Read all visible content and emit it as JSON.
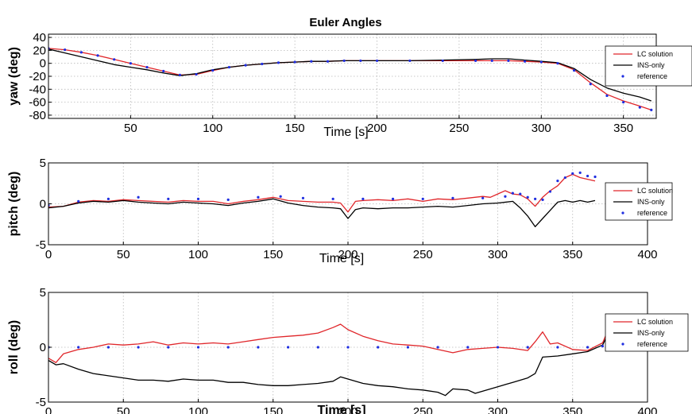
{
  "figure": {
    "title": "Euler Angles"
  },
  "chart_data": [
    {
      "type": "line",
      "ylabel": "yaw (deg)",
      "xlabel": "Time [s]",
      "xlim": [
        0,
        370
      ],
      "ylim": [
        -85,
        45
      ],
      "xticks": [
        50,
        100,
        150,
        200,
        250,
        300,
        350
      ],
      "yticks": [
        -80,
        -60,
        -40,
        -20,
        0,
        20,
        40
      ],
      "grid": true,
      "legend_position": "right",
      "series": [
        {
          "name": "LC solution",
          "color": "#e0262a",
          "style": "line",
          "x": [
            0,
            10,
            20,
            30,
            40,
            50,
            60,
            70,
            80,
            90,
            100,
            110,
            120,
            130,
            140,
            150,
            160,
            170,
            180,
            190,
            200,
            220,
            240,
            260,
            270,
            280,
            290,
            300,
            310,
            320,
            330,
            340,
            350,
            360,
            367
          ],
          "y": [
            23,
            21,
            17,
            12,
            6,
            0,
            -6,
            -12,
            -18,
            -17,
            -11,
            -6,
            -3,
            -1,
            1,
            2,
            3,
            3,
            4,
            4,
            4,
            4,
            4,
            4,
            4,
            4,
            3,
            2,
            0,
            -10,
            -30,
            -48,
            -58,
            -66,
            -72
          ]
        },
        {
          "name": "INS-only",
          "color": "#000000",
          "style": "line",
          "x": [
            0,
            10,
            20,
            30,
            40,
            50,
            60,
            70,
            80,
            90,
            100,
            110,
            120,
            130,
            140,
            150,
            160,
            170,
            180,
            190,
            200,
            220,
            240,
            260,
            270,
            280,
            290,
            300,
            310,
            320,
            330,
            340,
            350,
            360,
            367
          ],
          "y": [
            22,
            16,
            10,
            4,
            -2,
            -6,
            -10,
            -15,
            -19,
            -16,
            -10,
            -6,
            -3,
            -1,
            1,
            2,
            3,
            3,
            4,
            4,
            4,
            4,
            5,
            6,
            7,
            7,
            5,
            3,
            1,
            -8,
            -25,
            -38,
            -46,
            -52,
            -58
          ]
        },
        {
          "name": "reference",
          "color": "#1f2ee0",
          "style": "dots",
          "x": [
            0,
            10,
            20,
            30,
            40,
            50,
            60,
            70,
            80,
            90,
            100,
            110,
            120,
            130,
            140,
            150,
            160,
            170,
            180,
            190,
            200,
            220,
            240,
            260,
            270,
            280,
            290,
            300,
            310,
            320,
            330,
            340,
            350,
            360,
            367
          ],
          "y": [
            23,
            21,
            17,
            12,
            6,
            0,
            -6,
            -12,
            -18,
            -17,
            -11,
            -6,
            -3,
            -1,
            1,
            2,
            3,
            3,
            4,
            4,
            4,
            4,
            4,
            4,
            4,
            4,
            3,
            2,
            0,
            -11,
            -32,
            -50,
            -60,
            -68,
            -72
          ]
        }
      ]
    },
    {
      "type": "line",
      "ylabel": "pitch (deg)",
      "xlabel": "Time [s]",
      "xlim": [
        0,
        400
      ],
      "ylim": [
        -5,
        5
      ],
      "xticks": [
        0,
        50,
        100,
        150,
        200,
        250,
        300,
        350,
        400
      ],
      "yticks": [
        -5,
        0,
        5
      ],
      "grid": true,
      "legend_position": "right",
      "series": [
        {
          "name": "LC solution",
          "color": "#e0262a",
          "style": "line",
          "x": [
            0,
            10,
            20,
            30,
            40,
            50,
            60,
            70,
            80,
            90,
            100,
            110,
            120,
            130,
            140,
            150,
            160,
            170,
            180,
            190,
            195,
            200,
            205,
            210,
            220,
            230,
            240,
            250,
            260,
            270,
            280,
            290,
            295,
            300,
            305,
            310,
            315,
            320,
            325,
            330,
            335,
            340,
            345,
            350,
            355,
            360,
            365
          ],
          "y": [
            -0.4,
            -0.3,
            0.2,
            0.4,
            0.3,
            0.5,
            0.4,
            0.3,
            0.2,
            0.4,
            0.3,
            0.3,
            0.0,
            0.3,
            0.5,
            0.8,
            0.4,
            0.3,
            0.2,
            0.2,
            0.1,
            -1.0,
            0.3,
            0.4,
            0.5,
            0.4,
            0.6,
            0.3,
            0.6,
            0.5,
            0.7,
            0.9,
            0.8,
            1.2,
            1.6,
            1.2,
            1.1,
            0.6,
            -0.3,
            0.8,
            1.6,
            2.2,
            3.2,
            3.6,
            3.2,
            3.0,
            2.8
          ]
        },
        {
          "name": "INS-only",
          "color": "#000000",
          "style": "line",
          "x": [
            0,
            10,
            20,
            30,
            40,
            50,
            60,
            70,
            80,
            90,
            100,
            110,
            120,
            130,
            140,
            150,
            160,
            170,
            180,
            190,
            195,
            200,
            205,
            210,
            220,
            230,
            240,
            250,
            260,
            270,
            280,
            290,
            300,
            310,
            315,
            320,
            325,
            330,
            335,
            340,
            345,
            350,
            355,
            360,
            365
          ],
          "y": [
            -0.5,
            -0.3,
            0.1,
            0.3,
            0.2,
            0.4,
            0.2,
            0.1,
            0.0,
            0.2,
            0.1,
            0.0,
            -0.2,
            0.1,
            0.3,
            0.6,
            0.1,
            -0.2,
            -0.4,
            -0.5,
            -0.6,
            -1.8,
            -0.7,
            -0.5,
            -0.6,
            -0.5,
            -0.5,
            -0.4,
            -0.3,
            -0.4,
            -0.2,
            0.0,
            0.1,
            0.3,
            -0.5,
            -1.5,
            -2.8,
            -1.8,
            -0.8,
            0.2,
            0.4,
            0.2,
            0.4,
            0.2,
            0.4
          ]
        },
        {
          "name": "reference",
          "color": "#1f2ee0",
          "style": "dots",
          "x": [
            0,
            20,
            40,
            60,
            80,
            100,
            120,
            140,
            155,
            170,
            190,
            210,
            230,
            250,
            270,
            290,
            305,
            310,
            315,
            320,
            325,
            330,
            335,
            340,
            345,
            350,
            355,
            360,
            365
          ],
          "y": [
            -0.2,
            0.3,
            0.6,
            0.8,
            0.6,
            0.6,
            0.5,
            0.8,
            0.9,
            0.7,
            0.6,
            0.6,
            0.6,
            0.6,
            0.7,
            0.7,
            0.9,
            1.3,
            1.2,
            0.8,
            0.6,
            0.5,
            1.5,
            2.8,
            3.2,
            3.7,
            3.8,
            3.4,
            3.3
          ]
        }
      ]
    },
    {
      "type": "line",
      "ylabel": "roll (deg)",
      "xlabel": "Time [s]",
      "xlim": [
        0,
        400
      ],
      "ylim": [
        -5,
        5
      ],
      "xticks": [
        0,
        50,
        100,
        150,
        200,
        250,
        300,
        350,
        400
      ],
      "yticks": [
        -5,
        0,
        5
      ],
      "grid": true,
      "legend_position": "right",
      "series": [
        {
          "name": "LC solution",
          "color": "#e0262a",
          "style": "line",
          "x": [
            0,
            5,
            10,
            20,
            30,
            40,
            50,
            60,
            70,
            80,
            90,
            100,
            110,
            120,
            130,
            140,
            150,
            160,
            170,
            180,
            190,
            195,
            200,
            210,
            220,
            230,
            240,
            250,
            260,
            270,
            280,
            290,
            300,
            310,
            320,
            325,
            330,
            335,
            340,
            350,
            360,
            370,
            375,
            380
          ],
          "y": [
            -1.0,
            -1.4,
            -0.6,
            -0.2,
            0.0,
            0.3,
            0.2,
            0.3,
            0.5,
            0.2,
            0.4,
            0.3,
            0.4,
            0.3,
            0.5,
            0.7,
            0.9,
            1.0,
            1.1,
            1.3,
            1.8,
            2.1,
            1.6,
            1.0,
            0.6,
            0.3,
            0.2,
            0.1,
            -0.2,
            -0.5,
            -0.2,
            -0.1,
            0.0,
            -0.1,
            -0.3,
            0.5,
            1.4,
            0.3,
            0.4,
            -0.2,
            -0.3,
            0.4,
            2.0,
            2.1
          ]
        },
        {
          "name": "INS-only",
          "color": "#000000",
          "style": "line",
          "x": [
            0,
            5,
            10,
            20,
            30,
            40,
            50,
            60,
            70,
            80,
            90,
            100,
            110,
            120,
            130,
            140,
            150,
            160,
            170,
            180,
            190,
            195,
            200,
            210,
            220,
            230,
            240,
            250,
            260,
            265,
            270,
            280,
            285,
            290,
            300,
            310,
            320,
            325,
            330,
            340,
            350,
            360,
            370,
            375,
            380
          ],
          "y": [
            -1.2,
            -1.6,
            -1.5,
            -2.0,
            -2.4,
            -2.6,
            -2.8,
            -3.0,
            -3.0,
            -3.1,
            -2.9,
            -3.0,
            -3.0,
            -3.2,
            -3.2,
            -3.4,
            -3.5,
            -3.5,
            -3.4,
            -3.3,
            -3.1,
            -2.7,
            -2.9,
            -3.3,
            -3.5,
            -3.6,
            -3.8,
            -3.9,
            -4.1,
            -4.4,
            -3.8,
            -3.9,
            -4.2,
            -4.0,
            -3.6,
            -3.2,
            -2.8,
            -2.4,
            -0.9,
            -0.8,
            -0.6,
            -0.4,
            0.2,
            1.6,
            2.1
          ]
        },
        {
          "name": "reference",
          "color": "#1f2ee0",
          "style": "dots",
          "x": [
            0,
            20,
            40,
            60,
            80,
            100,
            120,
            140,
            160,
            180,
            200,
            220,
            240,
            260,
            280,
            300,
            320,
            340,
            360,
            370,
            375,
            380
          ],
          "y": [
            0,
            0,
            0,
            0,
            0,
            0,
            0,
            0,
            0,
            0,
            0,
            0,
            0,
            0,
            0,
            0,
            0,
            0,
            0,
            0.1,
            1.4,
            2.0
          ]
        }
      ]
    }
  ]
}
